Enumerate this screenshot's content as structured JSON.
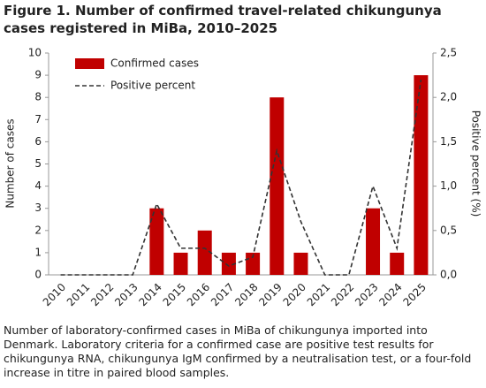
{
  "chart_data": {
    "type": "bar_line",
    "title": "Figure 1. Number of confirmed travel-related chikungunya cases registered in MiBa, 2010–2025",
    "categories": [
      "2010",
      "2011",
      "2012",
      "2013",
      "2014",
      "2015",
      "2016",
      "2017",
      "2018",
      "2019",
      "2020",
      "2021",
      "2022",
      "2023",
      "2024",
      "2025"
    ],
    "series": [
      {
        "name": "Confirmed cases",
        "color": "#c00000",
        "values": [
          0,
          0,
          0,
          0,
          3,
          1,
          2,
          1,
          1,
          8,
          1,
          0,
          0,
          3,
          1,
          9
        ]
      },
      {
        "name": "Positive percent",
        "color": "#333333",
        "axis": "y2",
        "values": [
          0,
          0,
          0,
          0,
          0.8,
          0.3,
          0.3,
          0.1,
          0.2,
          1.4,
          0.6,
          0,
          0,
          1.0,
          0.3,
          2.2
        ]
      }
    ],
    "ylabel": "Number of cases",
    "y2label": "Positive percent (%)",
    "ylim": [
      0,
      10
    ],
    "yticks": [
      0,
      1,
      2,
      3,
      4,
      5,
      6,
      7,
      8,
      9,
      10
    ],
    "y2lim": [
      0,
      2.5
    ],
    "y2ticks": [
      {
        "value": 0,
        "label": "0,0"
      },
      {
        "value": 0.5,
        "label": "0,5"
      },
      {
        "value": 1,
        "label": "1,0"
      },
      {
        "value": 1.5,
        "label": "1,5"
      },
      {
        "value": 2,
        "label": "2,0"
      },
      {
        "value": 2.5,
        "label": "2,5"
      }
    ],
    "legend": "upper left",
    "caption": "Number of laboratory-confirmed cases in MiBa of chikungunya imported into Denmark. Laboratory criteria for a confirmed case are positive test results for chikungunya RNA, chikungunya IgM confirmed by a neutralisation test, or a four-fold increase in titre in paired blood samples."
  }
}
